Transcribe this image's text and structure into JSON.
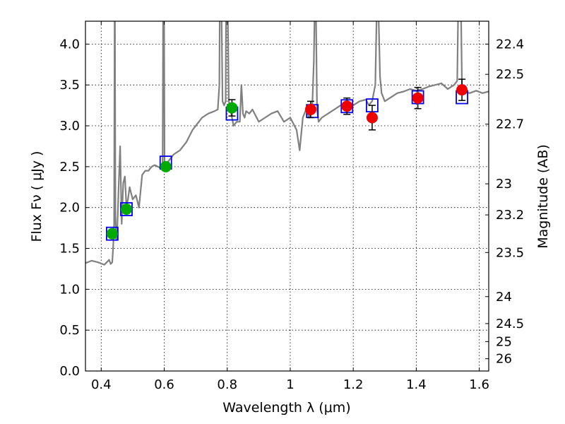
{
  "chart_data": {
    "type": "scatter",
    "xlabel": "Wavelength  λ (μm)",
    "ylabel": "Flux  Fν  ( μJy )",
    "ylabel_right": "Magnitude (AB)",
    "xlim": [
      0.35,
      1.63
    ],
    "ylim": [
      0.0,
      4.28
    ],
    "grid": true,
    "x_ticks": [
      0.4,
      0.6,
      0.8,
      1.0,
      1.2,
      1.4,
      1.6
    ],
    "x_tick_labels": [
      "0.4",
      "0.6",
      "0.8",
      "1",
      "1.2",
      "1.4",
      "1.6"
    ],
    "y_ticks": [
      0.0,
      0.5,
      1.0,
      1.5,
      2.0,
      2.5,
      3.0,
      3.5,
      4.0
    ],
    "y_tick_labels": [
      "0.0",
      "0.5",
      "1.0",
      "1.5",
      "2.0",
      "2.5",
      "3.0",
      "3.5",
      "4.0"
    ],
    "right_ticks": [
      {
        "label": "22.4",
        "flux": 4.0
      },
      {
        "label": "22.5",
        "flux": 3.63
      },
      {
        "label": "22.7",
        "flux": 3.02
      },
      {
        "label": "23",
        "flux": 2.29
      },
      {
        "label": "23.2",
        "flux": 1.91
      },
      {
        "label": "23.5",
        "flux": 1.45
      },
      {
        "label": "24",
        "flux": 0.91
      },
      {
        "label": "24.5",
        "flux": 0.58
      },
      {
        "label": "25",
        "flux": 0.36
      },
      {
        "label": "26",
        "flux": 0.15
      }
    ],
    "series": [
      {
        "name": "model spectrum",
        "kind": "line",
        "color": "#808080",
        "x": [
          0.35,
          0.37,
          0.39,
          0.41,
          0.425,
          0.43,
          0.435,
          0.437,
          0.439,
          0.441,
          0.443,
          0.445,
          0.448,
          0.45,
          0.455,
          0.46,
          0.465,
          0.47,
          0.475,
          0.48,
          0.485,
          0.49,
          0.5,
          0.51,
          0.52,
          0.53,
          0.54,
          0.55,
          0.56,
          0.57,
          0.58,
          0.59,
          0.595,
          0.597,
          0.599,
          0.601,
          0.604,
          0.61,
          0.62,
          0.63,
          0.65,
          0.67,
          0.69,
          0.71,
          0.72,
          0.74,
          0.76,
          0.77,
          0.775,
          0.777,
          0.78,
          0.785,
          0.79,
          0.795,
          0.797,
          0.8,
          0.805,
          0.81,
          0.82,
          0.83,
          0.84,
          0.845,
          0.85,
          0.855,
          0.86,
          0.87,
          0.88,
          0.9,
          0.92,
          0.94,
          0.96,
          0.98,
          1.0,
          1.02,
          1.03,
          1.04,
          1.05,
          1.06,
          1.07,
          1.075,
          1.08,
          1.085,
          1.09,
          1.1,
          1.12,
          1.14,
          1.16,
          1.18,
          1.2,
          1.22,
          1.24,
          1.25,
          1.255,
          1.26,
          1.27,
          1.275,
          1.28,
          1.285,
          1.29,
          1.3,
          1.32,
          1.34,
          1.36,
          1.38,
          1.4,
          1.42,
          1.44,
          1.46,
          1.48,
          1.5,
          1.52,
          1.53,
          1.535,
          1.54,
          1.545,
          1.55,
          1.57,
          1.59,
          1.61,
          1.63
        ],
        "y": [
          1.32,
          1.35,
          1.33,
          1.3,
          1.36,
          1.31,
          1.33,
          1.45,
          1.6,
          1.8,
          5.2,
          1.9,
          1.6,
          1.62,
          2.2,
          2.75,
          1.8,
          2.3,
          2.38,
          2.02,
          2.1,
          2.25,
          2.1,
          2.15,
          2.0,
          2.4,
          2.45,
          2.45,
          2.5,
          2.52,
          2.5,
          2.48,
          2.5,
          5.0,
          5.0,
          2.55,
          2.52,
          2.55,
          2.6,
          2.65,
          2.7,
          2.8,
          2.95,
          3.05,
          3.1,
          3.15,
          3.18,
          3.2,
          3.5,
          5.0,
          5.0,
          3.3,
          3.25,
          3.3,
          5.0,
          5.0,
          3.3,
          3.2,
          3.0,
          3.05,
          3.05,
          3.5,
          3.15,
          3.1,
          3.18,
          3.15,
          3.2,
          3.05,
          3.1,
          3.15,
          3.18,
          3.05,
          3.1,
          2.95,
          2.7,
          3.1,
          3.2,
          3.1,
          3.25,
          3.8,
          5.0,
          3.2,
          3.05,
          3.1,
          3.15,
          3.2,
          3.25,
          3.2,
          3.25,
          3.3,
          3.32,
          3.25,
          3.28,
          3.3,
          3.5,
          4.5,
          4.4,
          3.6,
          3.4,
          3.3,
          3.35,
          3.4,
          3.42,
          3.45,
          3.43,
          3.45,
          3.48,
          3.5,
          3.52,
          3.45,
          3.5,
          3.55,
          5.0,
          5.0,
          3.5,
          3.42,
          3.4,
          3.43,
          3.4,
          3.42
        ]
      },
      {
        "name": "model photometry",
        "kind": "open-square",
        "color": "#0000ee",
        "x": [
          0.435,
          0.48,
          0.605,
          0.815,
          1.07,
          1.18,
          1.26,
          1.405,
          1.545
        ],
        "y": [
          1.68,
          1.98,
          2.55,
          3.15,
          3.18,
          3.24,
          3.25,
          3.35,
          3.35
        ]
      },
      {
        "name": "green photometry",
        "kind": "filled-circle",
        "color": "#00aa00",
        "x": [
          0.435,
          0.48,
          0.605,
          0.815
        ],
        "y": [
          1.68,
          1.98,
          2.5,
          3.22
        ],
        "err": [
          0.05,
          0.05,
          0.05,
          0.1
        ]
      },
      {
        "name": "red photometry",
        "kind": "filled-circle",
        "color": "#ee0000",
        "x": [
          1.065,
          1.18,
          1.26,
          1.405,
          1.545
        ],
        "y": [
          3.2,
          3.24,
          3.1,
          3.34,
          3.44
        ],
        "err": [
          0.1,
          0.1,
          0.15,
          0.13,
          0.13
        ]
      }
    ]
  }
}
